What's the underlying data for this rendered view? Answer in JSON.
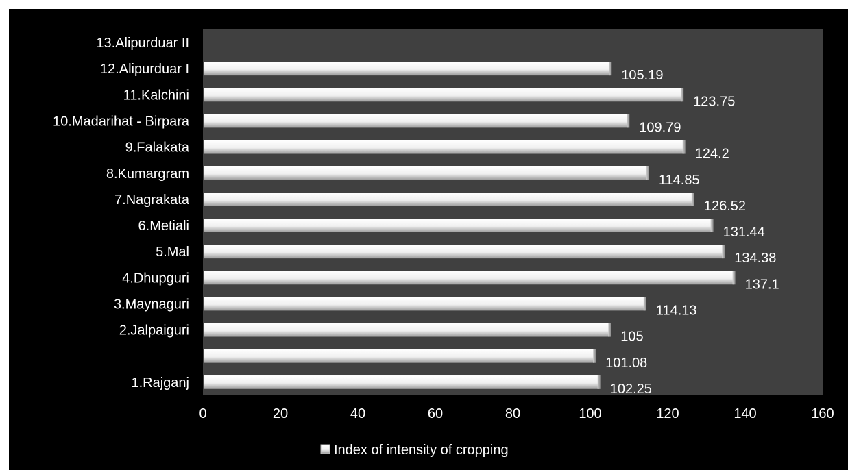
{
  "chart_data": {
    "type": "bar",
    "orientation": "horizontal",
    "categories": [
      "1.Rajganj",
      "",
      "2.Jalpaiguri",
      "3.Maynaguri",
      "4.Dhupguri",
      "5.Mal",
      "6.Metiali",
      "7.Nagrakata",
      "8.Kumargram",
      "9.Falakata",
      "10.Madarihat - Birpara",
      "11.Kalchini",
      "12.Alipurduar I",
      "13.Alipurduar II"
    ],
    "series": [
      {
        "name": "Index of intensity of cropping",
        "values": [
          102.25,
          101.08,
          105,
          114.13,
          137.1,
          134.38,
          131.44,
          126.52,
          114.85,
          124.2,
          109.79,
          123.75,
          105.19,
          null
        ],
        "value_labels": [
          "102.25",
          "101.08",
          "105",
          "114.13",
          "137.1",
          "134.38",
          "131.44",
          "126.52",
          "114.85",
          "124.2",
          "109.79",
          "123.75",
          "105.19",
          ""
        ]
      }
    ],
    "xlim": [
      0,
      160
    ],
    "xticks": [
      "0",
      "20",
      "40",
      "60",
      "80",
      "100",
      "120",
      "140",
      "160"
    ],
    "grid": false,
    "legend_position": "bottom",
    "colors": {
      "background": "#000000",
      "plot_area": "#404040",
      "bar": "#f2f2f2",
      "text": "#ffffff"
    }
  }
}
